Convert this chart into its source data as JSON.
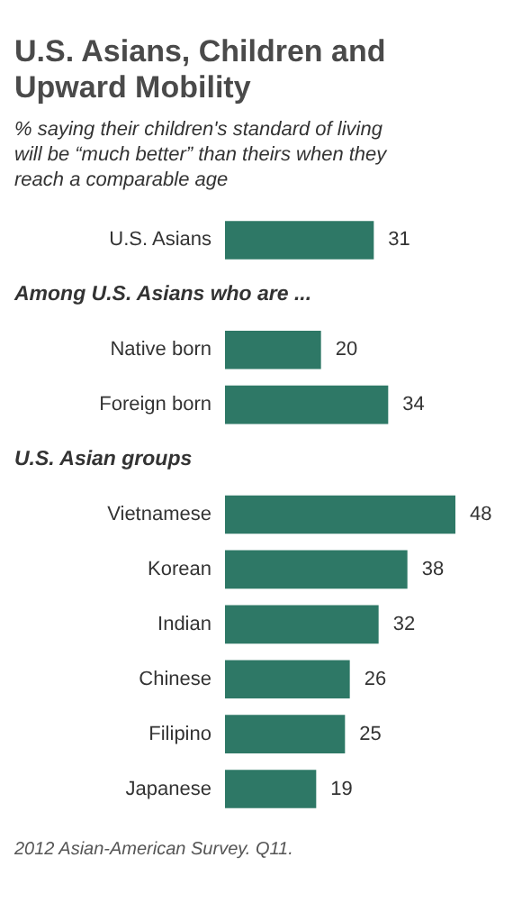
{
  "chart_data": {
    "type": "bar",
    "orientation": "horizontal",
    "title": "U.S. Asians, Children and Upward Mobility",
    "subtitle": "% saying their children's standard of living will be “much better” than theirs when they reach a comparable age",
    "categories": [
      "U.S. Asians",
      null,
      "Native born",
      "Foreign born",
      null,
      "Vietnamese",
      "Korean",
      "Indian",
      "Chinese",
      "Filipino",
      "Japanese"
    ],
    "values": [
      31,
      null,
      20,
      34,
      null,
      48,
      38,
      32,
      26,
      25,
      19
    ],
    "color": "#2e7866",
    "data_labels": true,
    "annotations": [
      "Among U.S. Asians who are ...",
      "U.S. Asian groups",
      "2012 Asian-American Survey. Q11."
    ]
  }
}
